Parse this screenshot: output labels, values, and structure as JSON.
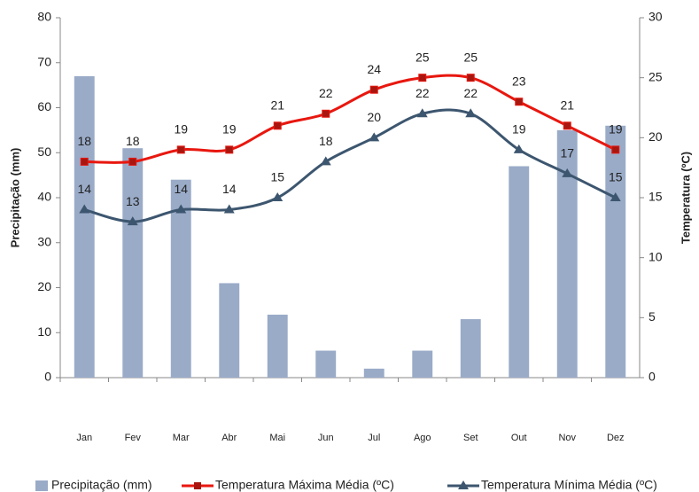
{
  "chart_data": {
    "type": "bar-line",
    "ylabel": "Precipitação (mm)",
    "y2label": "Temperatura (ºC)",
    "categories": [
      "Jan",
      "Fev",
      "Mar",
      "Abr",
      "Mai",
      "Jun",
      "Jul",
      "Ago",
      "Set",
      "Out",
      "Nov",
      "Dez"
    ],
    "series": [
      {
        "name": "Precipitação (mm)",
        "type": "bar",
        "color": "#9aabc8",
        "values": [
          67,
          51,
          44,
          21,
          14,
          6,
          2,
          6,
          13,
          47,
          55,
          56
        ]
      },
      {
        "name": "Temperatura Máxima Média  (ºC)",
        "type": "line",
        "axis": "y2",
        "color": "#e8170f",
        "marker": "square",
        "marker_color": "#a8160f",
        "values": [
          18,
          18,
          19,
          19,
          21,
          22,
          24,
          25,
          25,
          23,
          21,
          19
        ]
      },
      {
        "name": "Temperatura Mínima Média (ºC)",
        "type": "line",
        "axis": "y2",
        "color": "#3d566f",
        "marker": "triangle",
        "marker_color": "#3d566f",
        "values": [
          14,
          13,
          14,
          14,
          15,
          18,
          20,
          22,
          22,
          19,
          17,
          15
        ]
      }
    ],
    "ylim": [
      0,
      80
    ],
    "yticks": [
      0,
      10,
      20,
      30,
      40,
      50,
      60,
      70,
      80
    ],
    "y2lim": [
      0,
      30
    ],
    "y2ticks": [
      0,
      5,
      10,
      15,
      20,
      25,
      30
    ],
    "grid": false,
    "legend": "bottom"
  }
}
